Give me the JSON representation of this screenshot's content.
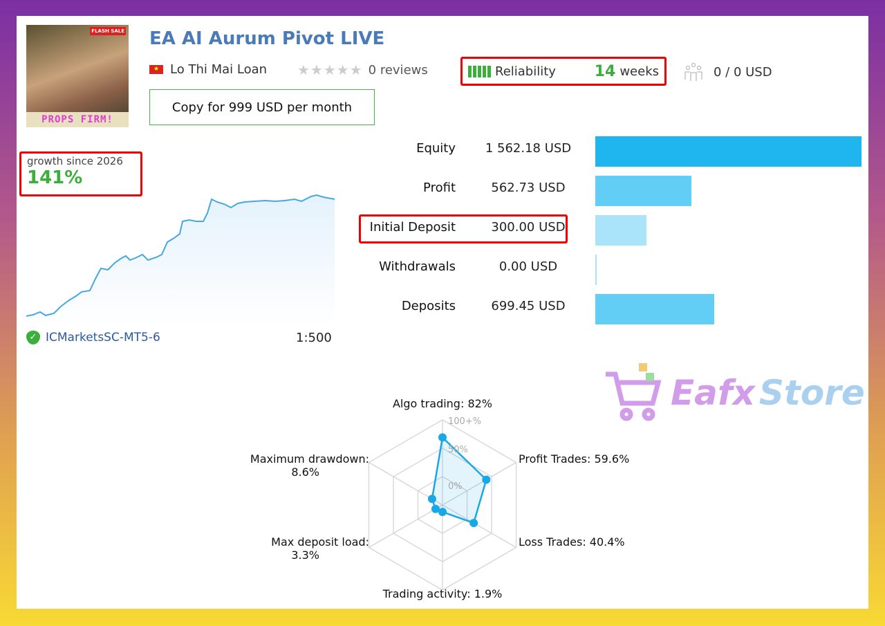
{
  "header": {
    "title": "EA AI Aurum Pivot LIVE",
    "author": "Lo Thi Mai Loan",
    "country_flag": "vietnam-flag",
    "rating_stars": 0,
    "reviews": "0 reviews",
    "reliability_label": "Reliability",
    "weeks_value": "14",
    "weeks_unit": "weeks",
    "subscribers": "0 / 0 USD",
    "copy_button": "Copy for 999 USD per month",
    "avatar_text": "PROPS FIRM!",
    "avatar_badge": "FLASH SALE"
  },
  "growth": {
    "label": "growth since 2026",
    "value": "141%",
    "broker": "ICMarketsSC-MT5-6",
    "leverage": "1:500",
    "line_color": "#45a8e0"
  },
  "stats": [
    {
      "label": "Equity",
      "value": "1 562.18 USD",
      "amount": 1562.18,
      "color": "#1fb6ef"
    },
    {
      "label": "Profit",
      "value": "562.73 USD",
      "amount": 562.73,
      "color": "#62cdf5"
    },
    {
      "label": "Initial Deposit",
      "value": "300.00 USD",
      "amount": 300.0,
      "color": "#aae4fa"
    },
    {
      "label": "Withdrawals",
      "value": "0.00 USD",
      "amount": 0,
      "color": "#aae4fa"
    },
    {
      "label": "Deposits",
      "value": "699.45 USD",
      "amount": 699.45,
      "color": "#62cdf5"
    }
  ],
  "radar": {
    "axis_labels": [
      "100+%",
      "50%",
      "0%"
    ],
    "items": [
      {
        "label": "Algo trading: 82%",
        "value": 82
      },
      {
        "label": "Profit Trades: 59.6%",
        "value": 59.6
      },
      {
        "label": "Loss Trades: 40.4%",
        "value": 40.4
      },
      {
        "label": "Trading activity: 1.9%",
        "value": 1.9
      },
      {
        "label": "Max deposit load:",
        "value_text": "3.3%",
        "value": 3.3
      },
      {
        "label": "Maximum drawdown:",
        "value_text": "8.6%",
        "value": 8.6
      }
    ],
    "color": "#1aa7e6"
  },
  "watermark": {
    "text1": "Eafx",
    "text2": "Store"
  }
}
